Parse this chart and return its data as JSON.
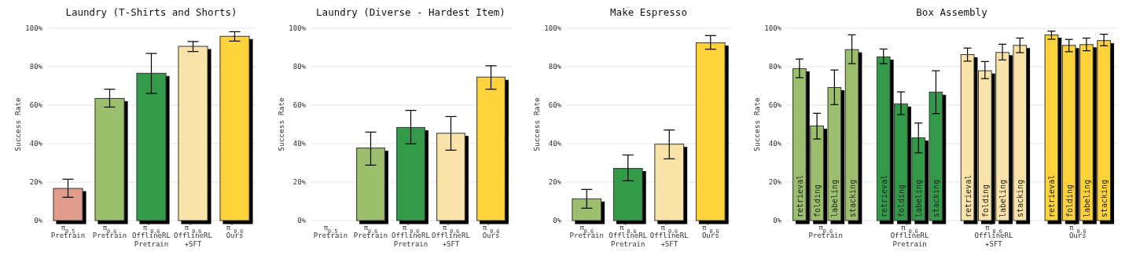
{
  "chart_data": [
    {
      "type": "bar",
      "title": "Laundry (T-Shirts and Shorts)",
      "ylabel": "Success Rate",
      "categories": [
        "π$_{0.5}$\nPretrain",
        "π$_{0.6}$\nPretrain",
        "π$^{*}$$_{0.6}$\nOfflineRL\nPretrain",
        "π$^{*}$$_{0.6}$\nOfflineRL\n+SFT",
        "π$^{*}$$_{0.6}$\nOurs"
      ],
      "values": [
        16.7,
        63.5,
        76.6,
        90.6,
        95.8
      ],
      "colors": [
        "#e19d8c",
        "#9cbf6e",
        "#339a4a",
        "#f9e3a8",
        "#fed23b"
      ],
      "errors": [
        [
          12.1,
          21.5
        ],
        [
          59,
          68.3
        ],
        [
          66.1,
          86.9
        ],
        [
          87.9,
          93.1
        ],
        [
          93.3,
          98.2
        ]
      ],
      "ylim": [
        0,
        100
      ],
      "yticks": [
        {
          "value": 0,
          "label": "0%"
        },
        {
          "value": 20,
          "label": "20%"
        },
        {
          "value": 40,
          "label": "40%"
        },
        {
          "value": 60,
          "label": "60%"
        },
        {
          "value": 80,
          "label": "80%"
        },
        {
          "value": 100,
          "label": "100%"
        }
      ],
      "grid": "y",
      "legend": false
    },
    {
      "type": "bar",
      "title": "Laundry (Diverse - Hardest Item)",
      "ylabel": "Success Rate",
      "categories": [
        "π$_{0.5}$\nPretrain",
        "π$_{0.6}$\nPretrain",
        "π$^{*}$$_{0.6}$\nOfflineRL\nPretrain",
        "π$^{*}$$_{0.6}$\nOfflineRL\n+SFT",
        "π$^{*}$$_{0.6}$\nOurs"
      ],
      "values": [
        0,
        37.7,
        48.4,
        45.4,
        74.6
      ],
      "colors": [
        "#e19d8c",
        "#9cbf6e",
        "#339a4a",
        "#f9e3a8",
        "#fed23b"
      ],
      "errors": [
        null,
        [
          28.8,
          46
        ],
        [
          39.9,
          57.3
        ],
        [
          36.6,
          54.1
        ],
        [
          68.3,
          80.5
        ]
      ],
      "ylim": [
        0,
        100
      ],
      "yticks": [
        {
          "value": 0,
          "label": "0%"
        },
        {
          "value": 20,
          "label": "20%"
        },
        {
          "value": 40,
          "label": "40%"
        },
        {
          "value": 60,
          "label": "60%"
        },
        {
          "value": 80,
          "label": "80%"
        },
        {
          "value": 100,
          "label": "100%"
        }
      ],
      "grid": "y",
      "legend": false
    },
    {
      "type": "bar",
      "title": "Make Espresso",
      "ylabel": "Success Rate",
      "categories": [
        "π$_{0.6}$\nPretrain",
        "π$^{*}$$_{0.6}$\nOfflineRL\nPretrain",
        "π$^{*}$$_{0.6}$\nOfflineRL\n+SFT",
        "π$^{*}$$_{0.6}$\nOurs"
      ],
      "values": [
        11.3,
        27.1,
        39.7,
        92.4
      ],
      "colors": [
        "#9cbf6e",
        "#339a4a",
        "#f9e3a8",
        "#fed23b"
      ],
      "errors": [
        [
          6.4,
          16.2
        ],
        [
          20.7,
          34.1
        ],
        [
          32.1,
          47.1
        ],
        [
          89.1,
          96.2
        ]
      ],
      "ylim": [
        0,
        100
      ],
      "yticks": [
        {
          "value": 0,
          "label": "0%"
        },
        {
          "value": 20,
          "label": "20%"
        },
        {
          "value": 40,
          "label": "40%"
        },
        {
          "value": 60,
          "label": "60%"
        },
        {
          "value": 80,
          "label": "80%"
        },
        {
          "value": 100,
          "label": "100%"
        }
      ],
      "grid": "y",
      "legend": false
    },
    {
      "type": "bar",
      "title": "Box Assembly",
      "ylabel": "Success Rate",
      "categories": [
        "π$_{0.6}$\nPretrain",
        "π$^{*}$$_{0.6}$\nOfflineRL\nPretrain",
        "π$^{*}$$_{0.6}$\nOfflineRL\n+SFT",
        "π$^{*}$$_{0.6}$\nOurs"
      ],
      "series": [
        {
          "name": "retrieval",
          "colors": [
            "#9cbf6e",
            "#339a4a",
            "#f9e3a8",
            "#fed23b"
          ],
          "values": [
            79.0,
            85.1,
            86.3,
            96.5
          ],
          "errors": [
            [
              74.3,
              84
            ],
            [
              81.6,
              89.2
            ],
            [
              82.9,
              89.7
            ],
            [
              94.3,
              98.5
            ]
          ]
        },
        {
          "name": "folding",
          "colors": [
            "#9cbf6e",
            "#339a4a",
            "#f9e3a8",
            "#fed23b"
          ],
          "values": [
            49.2,
            60.7,
            77.9,
            91.1
          ],
          "errors": [
            [
              42.4,
              55.8
            ],
            [
              55.1,
              66.9
            ],
            [
              73.8,
              82.7
            ],
            [
              87.8,
              94.2
            ]
          ]
        },
        {
          "name": "labeling",
          "colors": [
            "#9cbf6e",
            "#339a4a",
            "#f9e3a8",
            "#fed23b"
          ],
          "values": [
            69.2,
            43.0,
            87.4,
            91.5
          ],
          "errors": [
            [
              60.3,
              78.3
            ],
            [
              35.2,
              50.7
            ],
            [
              83.5,
              91.7
            ],
            [
              88.3,
              94.9
            ]
          ]
        },
        {
          "name": "stacking",
          "colors": [
            "#9cbf6e",
            "#339a4a",
            "#f9e3a8",
            "#fed23b"
          ],
          "values": [
            88.9,
            66.8,
            91.1,
            93.6
          ],
          "errors": [
            [
              81.6,
              96.6
            ],
            [
              55.6,
              77.9
            ],
            [
              87.3,
              94.9
            ],
            [
              90.9,
              96.9
            ]
          ]
        }
      ],
      "ylim": [
        0,
        100
      ],
      "yticks": [
        {
          "value": 0,
          "label": "0%"
        },
        {
          "value": 20,
          "label": "20%"
        },
        {
          "value": 40,
          "label": "40%"
        },
        {
          "value": 60,
          "label": "60%"
        },
        {
          "value": 80,
          "label": "80%"
        },
        {
          "value": 100,
          "label": "100%"
        }
      ],
      "grid": "y",
      "legend": false
    }
  ]
}
